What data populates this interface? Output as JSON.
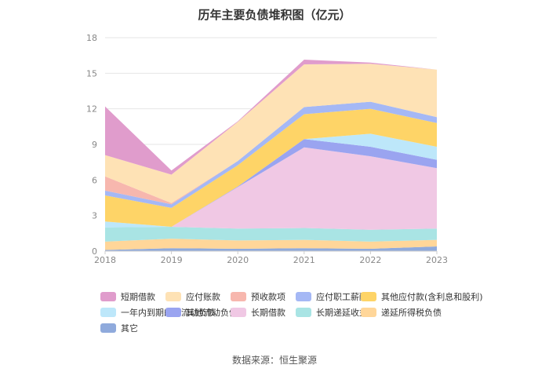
{
  "chart_data": {
    "type": "area",
    "stacked": true,
    "title": "历年主要负债堆积图（亿元）",
    "x": [
      "2018",
      "2019",
      "2020",
      "2021",
      "2022",
      "2023"
    ],
    "ylim": [
      0,
      18
    ],
    "yticks": [
      0,
      3,
      6,
      9,
      12,
      15,
      18
    ],
    "grid": true,
    "legend_position": "bottom",
    "series": [
      {
        "name": "其它",
        "color": "#8faadc",
        "values": [
          0.1,
          0.25,
          0.2,
          0.25,
          0.2,
          0.4
        ]
      },
      {
        "name": "递延所得税负债",
        "color": "#ffd699",
        "values": [
          0.7,
          0.8,
          0.7,
          0.7,
          0.6,
          0.55
        ]
      },
      {
        "name": "长期递延收益",
        "color": "#a9e4e4",
        "values": [
          1.2,
          1.0,
          1.0,
          1.0,
          1.0,
          0.95
        ]
      },
      {
        "name": "长期借款",
        "color": "#f0c8e4",
        "values": [
          0,
          0,
          3.5,
          6.8,
          6.2,
          5.1
        ]
      },
      {
        "name": "其他流动负债",
        "color": "#9aa4f0",
        "values": [
          0,
          0,
          0.05,
          0.7,
          0.8,
          0.7
        ]
      },
      {
        "name": "一年内到期的非流动负债",
        "color": "#bde7fa",
        "values": [
          0.5,
          0,
          0,
          0,
          1.1,
          1.1
        ]
      },
      {
        "name": "其他应付款(含利息和股利)",
        "color": "#fed467",
        "values": [
          2.2,
          1.6,
          1.8,
          2.1,
          2.1,
          2.0
        ]
      },
      {
        "name": "应付职工薪酬",
        "color": "#a5b8f5",
        "values": [
          0.4,
          0.3,
          0.35,
          0.6,
          0.6,
          0.5
        ]
      },
      {
        "name": "预收款项",
        "color": "#f7b7ae",
        "values": [
          1.2,
          0.1,
          0,
          0,
          0,
          0
        ]
      },
      {
        "name": "应付账款",
        "color": "#fee2b5",
        "values": [
          1.8,
          2.4,
          3.3,
          3.6,
          3.2,
          4.0
        ]
      },
      {
        "name": "短期借款",
        "color": "#e09ccc",
        "values": [
          4.1,
          0.35,
          0.05,
          0.4,
          0.1,
          0
        ]
      }
    ],
    "legend_order": [
      "短期借款",
      "应付账款",
      "预收款项",
      "应付职工薪酬",
      "其他应付款(含利息和股利)",
      "一年内到期的非流动负债",
      "其他流动负债",
      "长期借款",
      "长期递延收益",
      "递延所得税负债",
      "其它"
    ]
  },
  "source": "数据来源：恒生聚源"
}
